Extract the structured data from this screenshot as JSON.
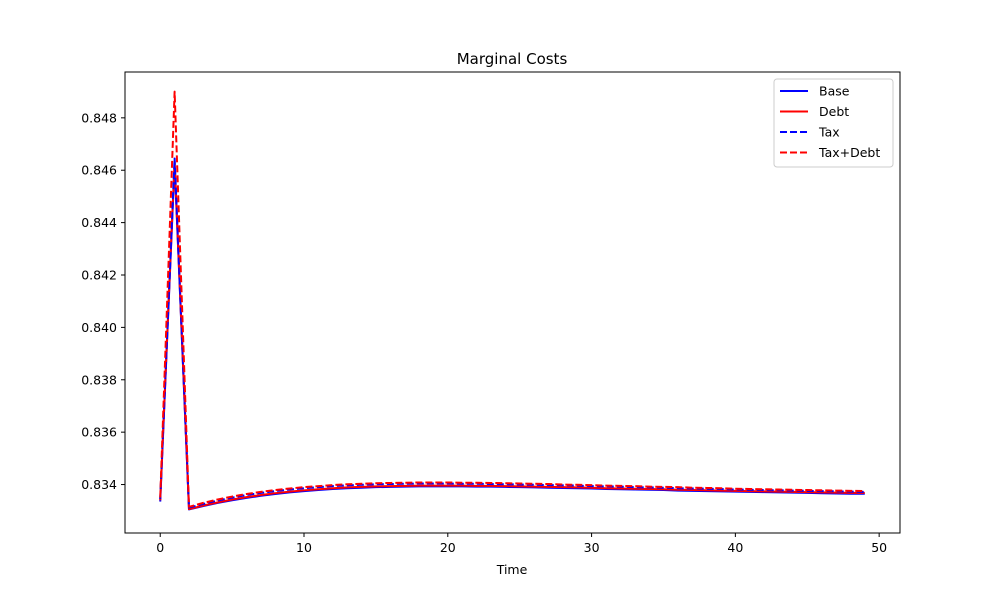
{
  "chart_data": {
    "type": "line",
    "title": "Marginal Costs",
    "xlabel": "Time",
    "ylabel": "",
    "xlim": [
      -2.45,
      51.45
    ],
    "ylim": [
      0.83215,
      0.84975
    ],
    "xticks": [
      0,
      10,
      20,
      30,
      40,
      50
    ],
    "yticks": [
      0.834,
      0.836,
      0.838,
      0.84,
      0.842,
      0.844,
      0.846,
      0.848
    ],
    "ytick_labels": [
      "0.834",
      "0.836",
      "0.838",
      "0.840",
      "0.842",
      "0.844",
      "0.846",
      "0.848"
    ],
    "grid": false,
    "legend_position": "top-right",
    "x": [
      0,
      1,
      2,
      3,
      4,
      5,
      6,
      7,
      8,
      9,
      10,
      11,
      12,
      13,
      14,
      15,
      16,
      17,
      18,
      19,
      20,
      21,
      22,
      23,
      24,
      25,
      26,
      27,
      28,
      29,
      30,
      31,
      32,
      33,
      34,
      35,
      36,
      37,
      38,
      39,
      40,
      41,
      42,
      43,
      44,
      45,
      46,
      47,
      48,
      49
    ],
    "series": [
      {
        "name": "Base",
        "color": "#0000ff",
        "dash": "solid",
        "values": [
          0.83335,
          0.84625,
          0.83305,
          0.83318,
          0.8333,
          0.8334,
          0.83349,
          0.83357,
          0.83364,
          0.8337,
          0.83375,
          0.83379,
          0.83383,
          0.83386,
          0.83388,
          0.8339,
          0.83391,
          0.83392,
          0.83393,
          0.83393,
          0.83393,
          0.83393,
          0.83392,
          0.83392,
          0.83391,
          0.8339,
          0.83389,
          0.83388,
          0.83387,
          0.83386,
          0.83385,
          0.83383,
          0.83382,
          0.83381,
          0.8338,
          0.83379,
          0.83377,
          0.83376,
          0.83375,
          0.83374,
          0.83373,
          0.83372,
          0.83371,
          0.8337,
          0.83369,
          0.83368,
          0.83367,
          0.83366,
          0.83365,
          0.83365
        ]
      },
      {
        "name": "Debt",
        "color": "#ff0000",
        "dash": "solid",
        "values": [
          0.8334,
          0.84635,
          0.83306,
          0.8332,
          0.83332,
          0.83343,
          0.83352,
          0.8336,
          0.83367,
          0.83373,
          0.83378,
          0.83382,
          0.83386,
          0.83389,
          0.83391,
          0.83393,
          0.83394,
          0.83395,
          0.83396,
          0.83396,
          0.83396,
          0.83396,
          0.83395,
          0.83395,
          0.83394,
          0.83393,
          0.83392,
          0.83391,
          0.8339,
          0.83389,
          0.83388,
          0.83386,
          0.83385,
          0.83384,
          0.83383,
          0.83382,
          0.8338,
          0.83379,
          0.83378,
          0.83377,
          0.83376,
          0.83375,
          0.83374,
          0.83373,
          0.83372,
          0.83371,
          0.8337,
          0.83369,
          0.83368,
          0.83368
        ]
      },
      {
        "name": "Tax",
        "color": "#0000ff",
        "dash": "dashed",
        "values": [
          0.83345,
          0.84645,
          0.83312,
          0.83326,
          0.83339,
          0.8335,
          0.8336,
          0.83368,
          0.83375,
          0.83381,
          0.83386,
          0.8339,
          0.83394,
          0.83397,
          0.83399,
          0.83401,
          0.83402,
          0.83403,
          0.83404,
          0.83404,
          0.83404,
          0.83403,
          0.83403,
          0.83402,
          0.83401,
          0.834,
          0.83399,
          0.83398,
          0.83397,
          0.83396,
          0.83394,
          0.83393,
          0.83392,
          0.8339,
          0.83389,
          0.83388,
          0.83386,
          0.83385,
          0.83384,
          0.83383,
          0.83381,
          0.8338,
          0.83379,
          0.83378,
          0.83377,
          0.83376,
          0.83375,
          0.83374,
          0.83373,
          0.83372
        ]
      },
      {
        "name": "Tax+Debt",
        "color": "#ff0000",
        "dash": "dashed",
        "values": [
          0.8335,
          0.849,
          0.83315,
          0.8333,
          0.83343,
          0.83354,
          0.83364,
          0.83372,
          0.83379,
          0.83385,
          0.8339,
          0.83394,
          0.83398,
          0.83401,
          0.83403,
          0.83405,
          0.83406,
          0.83407,
          0.83408,
          0.83408,
          0.83408,
          0.83407,
          0.83407,
          0.83406,
          0.83405,
          0.83404,
          0.83403,
          0.83402,
          0.834,
          0.83399,
          0.83398,
          0.83396,
          0.83395,
          0.83394,
          0.83392,
          0.83391,
          0.8339,
          0.83388,
          0.83387,
          0.83386,
          0.83384,
          0.83383,
          0.83382,
          0.83381,
          0.8338,
          0.83379,
          0.83378,
          0.83377,
          0.83376,
          0.83375
        ]
      }
    ]
  }
}
